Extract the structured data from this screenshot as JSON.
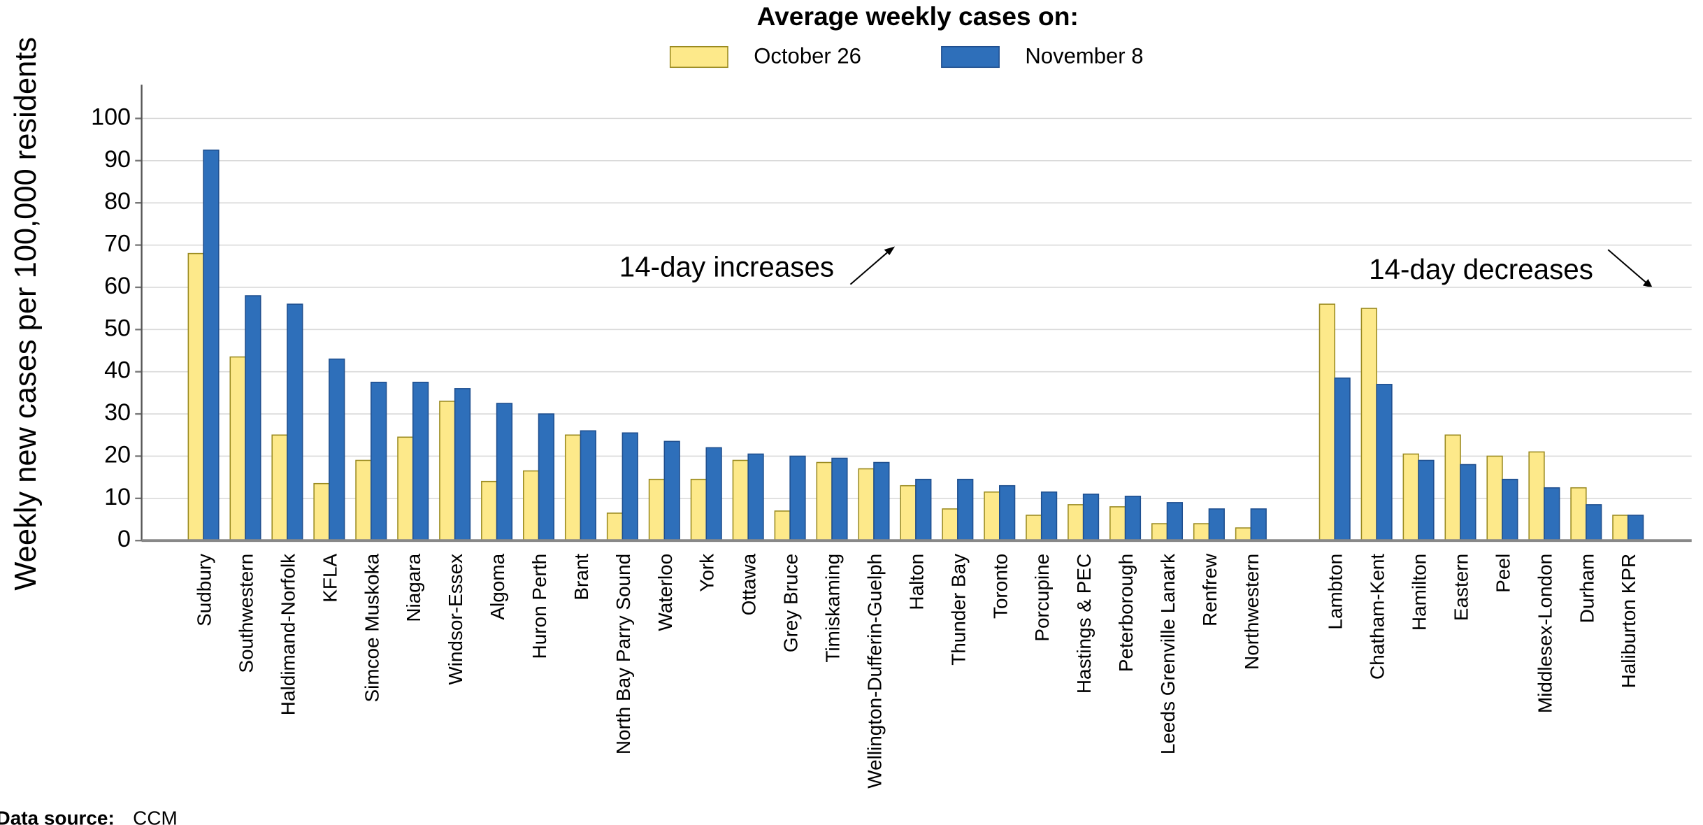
{
  "chart_data": {
    "type": "bar",
    "title": "Average weekly cases on:",
    "y_label": "Weekly new cases per 100,000 residents",
    "categories": [
      "Sudbury",
      "Southwestern",
      "Haldimand-Norfolk",
      "KFLA",
      "Simcoe Muskoka",
      "Niagara",
      "Windsor-Essex",
      "Algoma",
      "Huron Perth",
      "Brant",
      "North Bay Parry Sound",
      "Waterloo",
      "York",
      "Ottawa",
      "Grey Bruce",
      "Timiskaming",
      "Wellington-Dufferin-Guelph",
      "Halton",
      "Thunder Bay",
      "Toronto",
      "Porcupine",
      "Hastings & PEC",
      "Peterborough",
      "Leeds Grenville Lanark",
      "Renfrew",
      "Northwestern",
      null,
      "Lambton",
      "Chatham-Kent",
      "Hamilton",
      "Eastern",
      "Peel",
      "Middlesex-London",
      "Durham",
      "Haliburton KPR"
    ],
    "series": [
      {
        "name": "October 26",
        "color": "#fde98a",
        "values": [
          68,
          43.5,
          25,
          13.5,
          19,
          24.5,
          33,
          14,
          16.5,
          25,
          6.5,
          14.5,
          14.5,
          19,
          7,
          18.5,
          17,
          13,
          7.5,
          11.5,
          6,
          8.5,
          8,
          4,
          4,
          3,
          null,
          56,
          55,
          20.5,
          25,
          20,
          21,
          12.5,
          6
        ]
      },
      {
        "name": "November 8",
        "color": "#2e6fba",
        "values": [
          92.5,
          58,
          56,
          43,
          37.5,
          37.5,
          36,
          32.5,
          30,
          26,
          25.5,
          23.5,
          22,
          20.5,
          20,
          19.5,
          18.5,
          14.5,
          14.5,
          13,
          11.5,
          11,
          10.5,
          9,
          7.5,
          7.5,
          null,
          38.5,
          37,
          19,
          18,
          14.5,
          12.5,
          8.5,
          6
        ]
      }
    ],
    "ylim": [
      0,
      108
    ],
    "yticks": [
      0,
      10,
      20,
      30,
      40,
      50,
      60,
      70,
      80,
      90,
      100
    ],
    "grid": true,
    "annotations": [
      "14-day increases",
      "14-day decreases"
    ],
    "source_label": "Data source:",
    "source": "CCM"
  }
}
